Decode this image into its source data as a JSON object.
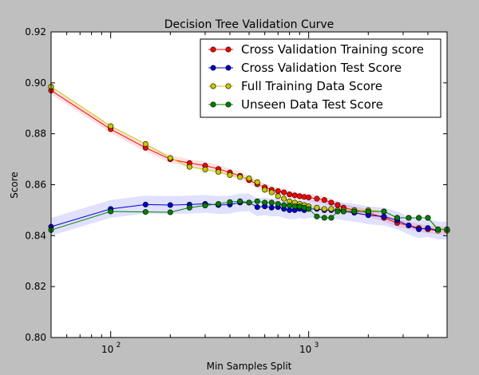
{
  "chart_data": {
    "type": "line",
    "title": "Decision Tree Validation Curve",
    "xlabel": "Min Samples Split",
    "ylabel": "Score",
    "xscale": "log",
    "xlim": [
      50,
      5000
    ],
    "ylim": [
      0.8,
      0.92
    ],
    "yticks": [
      "0.80",
      "0.82",
      "0.84",
      "0.86",
      "0.88",
      "0.90",
      "0.92"
    ],
    "xticks": [
      {
        "value": 100,
        "base": "10",
        "exp": "2"
      },
      {
        "value": 1000,
        "base": "10",
        "exp": "3"
      }
    ],
    "grid": false,
    "legend_position": "top-right",
    "x": [
      50,
      100,
      150,
      200,
      250,
      300,
      350,
      400,
      450,
      500,
      550,
      600,
      650,
      700,
      750,
      800,
      850,
      900,
      950,
      1000,
      1100,
      1200,
      1300,
      1400,
      1500,
      1700,
      2000,
      2400,
      2800,
      3200,
      3600,
      4000,
      4500,
      5000
    ],
    "series": [
      {
        "name": "Cross Validation Training score",
        "color": "#ff0000",
        "band_color": "#ff0000",
        "band_width": 0.0015,
        "values": [
          0.897,
          0.8818,
          0.8745,
          0.87,
          0.8685,
          0.8675,
          0.8662,
          0.8648,
          0.8635,
          0.8618,
          0.8602,
          0.859,
          0.858,
          0.8575,
          0.857,
          0.8562,
          0.8558,
          0.8555,
          0.8552,
          0.855,
          0.8545,
          0.854,
          0.853,
          0.852,
          0.851,
          0.85,
          0.849,
          0.847,
          0.845,
          0.844,
          0.843,
          0.8425,
          0.842,
          0.842
        ]
      },
      {
        "name": "Cross Validation Test Score",
        "color": "#0000cc",
        "band_color": "#0000ff",
        "band_width": 0.0035,
        "values": [
          0.8435,
          0.8505,
          0.8522,
          0.852,
          0.8522,
          0.8525,
          0.852,
          0.8522,
          0.853,
          0.853,
          0.8512,
          0.8515,
          0.851,
          0.8512,
          0.8505,
          0.85,
          0.85,
          0.8505,
          0.85,
          0.8505,
          0.8505,
          0.85,
          0.85,
          0.85,
          0.8495,
          0.849,
          0.848,
          0.8475,
          0.846,
          0.844,
          0.8425,
          0.843,
          0.842,
          0.842
        ]
      },
      {
        "name": "Full Training Data Score",
        "color": "#c8c800",
        "band_color": null,
        "band_width": 0,
        "values": [
          0.8985,
          0.883,
          0.876,
          0.8705,
          0.867,
          0.866,
          0.865,
          0.8638,
          0.863,
          0.8625,
          0.861,
          0.858,
          0.857,
          0.8555,
          0.8545,
          0.8535,
          0.853,
          0.8525,
          0.852,
          0.8515,
          0.851,
          0.8505,
          0.8505,
          0.85,
          0.85,
          0.85,
          0.85,
          0.8495,
          0.847,
          0.847,
          0.847,
          0.847,
          0.842,
          0.842
        ]
      },
      {
        "name": "Unseen Data Test Score",
        "color": "#008000",
        "band_color": null,
        "band_width": 0,
        "values": [
          0.8422,
          0.8495,
          0.8493,
          0.8492,
          0.851,
          0.8518,
          0.8525,
          0.8532,
          0.8535,
          0.853,
          0.8535,
          0.853,
          0.853,
          0.8525,
          0.852,
          0.8518,
          0.8515,
          0.8515,
          0.851,
          0.8505,
          0.8475,
          0.847,
          0.847,
          0.8495,
          0.8495,
          0.8495,
          0.8495,
          0.8495,
          0.847,
          0.847,
          0.847,
          0.847,
          0.8425,
          0.8425
        ]
      }
    ]
  }
}
